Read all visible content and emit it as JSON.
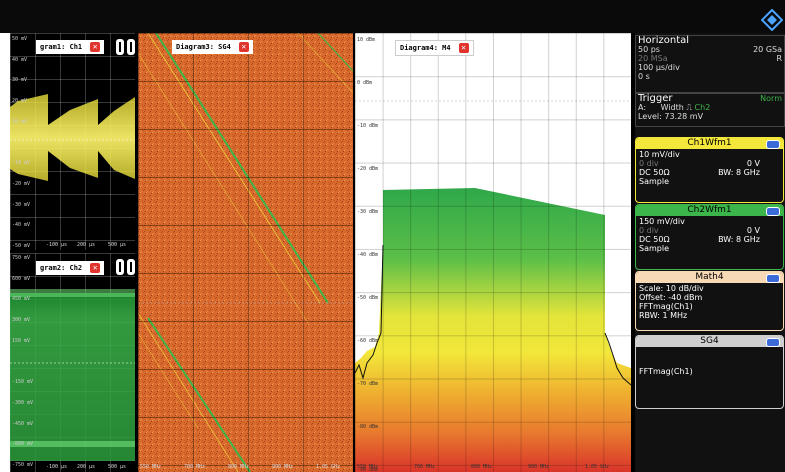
{
  "diagrams": {
    "d1": {
      "title": "gram1: Ch1",
      "y_labels": [
        "50 mV",
        "40 mV",
        "30 mV",
        "20 mV",
        "10 mV",
        "",
        "-10 mV",
        "-20 mV",
        "-30 mV",
        "-40 mV",
        "-50 mV"
      ],
      "x_labels": [
        "-100 µs",
        "200 µs",
        "500 µs"
      ]
    },
    "d2": {
      "title": "gram2: Ch2",
      "y_labels": [
        "750 mV",
        "600 mV",
        "450 mV",
        "300 mV",
        "150 mV",
        "",
        "-150 mV",
        "-300 mV",
        "-450 mV",
        "-600 mV",
        "-750 mV"
      ],
      "x_labels": [
        "-100 µs",
        "200 µs",
        "500 µs"
      ]
    },
    "d3": {
      "title": "Diagram3: SG4",
      "x_labels": [
        "550 MHz",
        "700 MHz",
        "800 MHz",
        "900 MHz",
        "1.05 GHz"
      ]
    },
    "d4": {
      "title": "Diagram4: M4",
      "y_labels": [
        "10 dBm",
        "0 dBm",
        "-10 dBm",
        "-20 dBm",
        "-30 dBm",
        "-40 dBm",
        "-50 dBm",
        "-60 dBm",
        "-70 dBm",
        "-80 dBm",
        "-90 dBm"
      ],
      "x_labels": [
        "550 MHz",
        "700 MHz",
        "800 MHz",
        "900 MHz",
        "1.05 GHz"
      ]
    }
  },
  "horizontal": {
    "title": "Horizontal",
    "scale": "50 ps",
    "sample_rate": "20 GSa",
    "msa": "20 MSa",
    "r_label": "R",
    "time_div": "100 µs/div",
    "offset": "0 s"
  },
  "trigger": {
    "title": "Trigger",
    "mode": "Norm",
    "source_label": "A:",
    "type": "Width",
    "channel": "Ch2",
    "level": "Level: 73.28 mV"
  },
  "cards": {
    "ch1": {
      "title": "Ch1Wfm1",
      "scale": "10 mV/div",
      "div": "0 div",
      "offset": "0 V",
      "coupling": "DC 50Ω",
      "bw": "BW: 8 GHz",
      "mode": "Sample"
    },
    "ch2": {
      "title": "Ch2Wfm1",
      "scale": "150 mV/div",
      "div": "0 div",
      "offset": "0 V",
      "coupling": "DC 50Ω",
      "bw": "BW: 8 GHz",
      "mode": "Sample"
    },
    "math": {
      "title": "Math4",
      "scale": "Scale:  10 dB/div",
      "offset": "Offset: -40 dBm",
      "func": "FFTmag(Ch1)",
      "rbw": "RBW:  1 MHz"
    },
    "sg": {
      "title": "SG4",
      "func": "FFTmag(Ch1)"
    }
  },
  "colors": {
    "ch1": "#f2e73a",
    "ch2": "#3cb54a",
    "math": "#f8d9b5",
    "sg": "#cfcfcf",
    "accent": "#3a6bd8"
  }
}
